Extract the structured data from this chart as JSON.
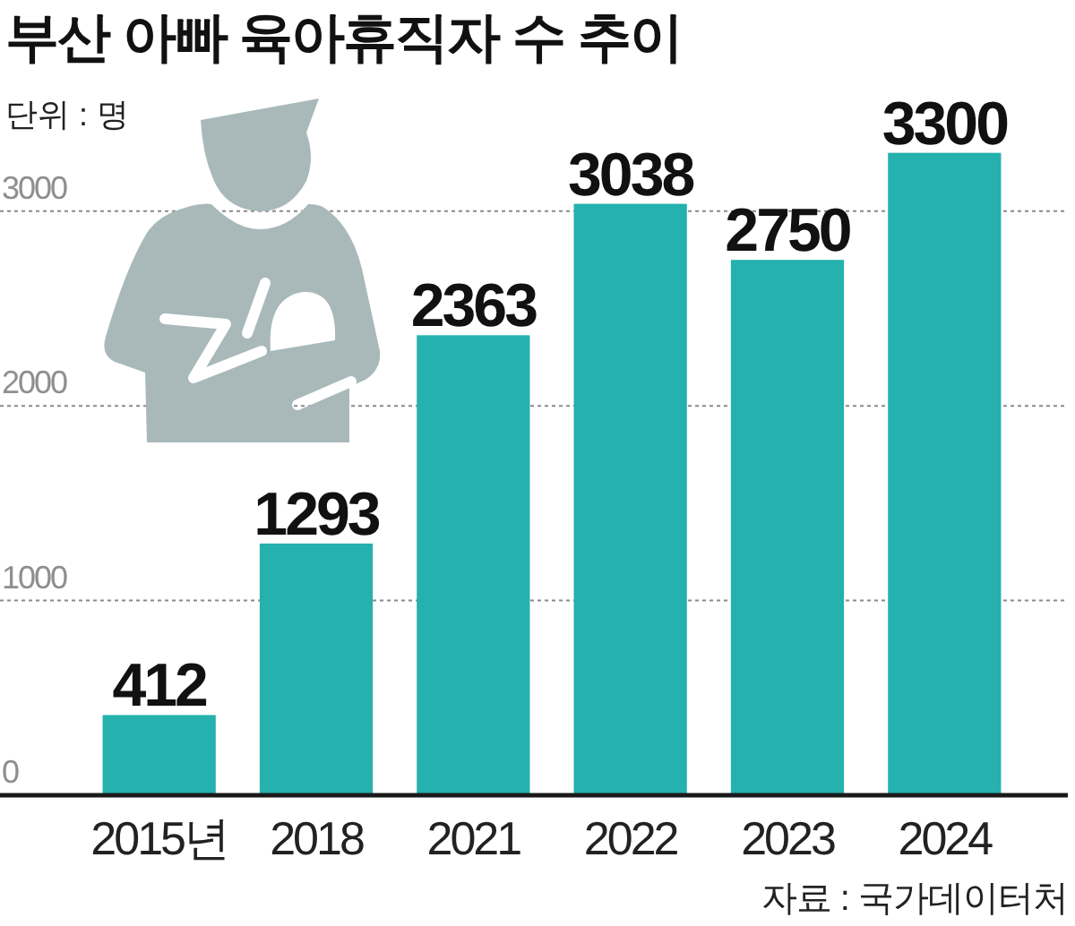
{
  "chart_data": {
    "type": "bar",
    "title": "부산 아빠 육아휴직자 수 추이",
    "ylabel": "단위 : 명",
    "categories": [
      "2015년",
      "2018",
      "2021",
      "2022",
      "2023",
      "2024"
    ],
    "values": [
      412,
      1293,
      2363,
      3038,
      2750,
      3300
    ],
    "color": "#25b1ad",
    "ylim": [
      0,
      4085
    ],
    "yticks": [
      0,
      1000,
      2000,
      3000
    ],
    "grid": "y",
    "data_labels": true,
    "annotations": [
      "자료 : 국가데이터처"
    ]
  }
}
